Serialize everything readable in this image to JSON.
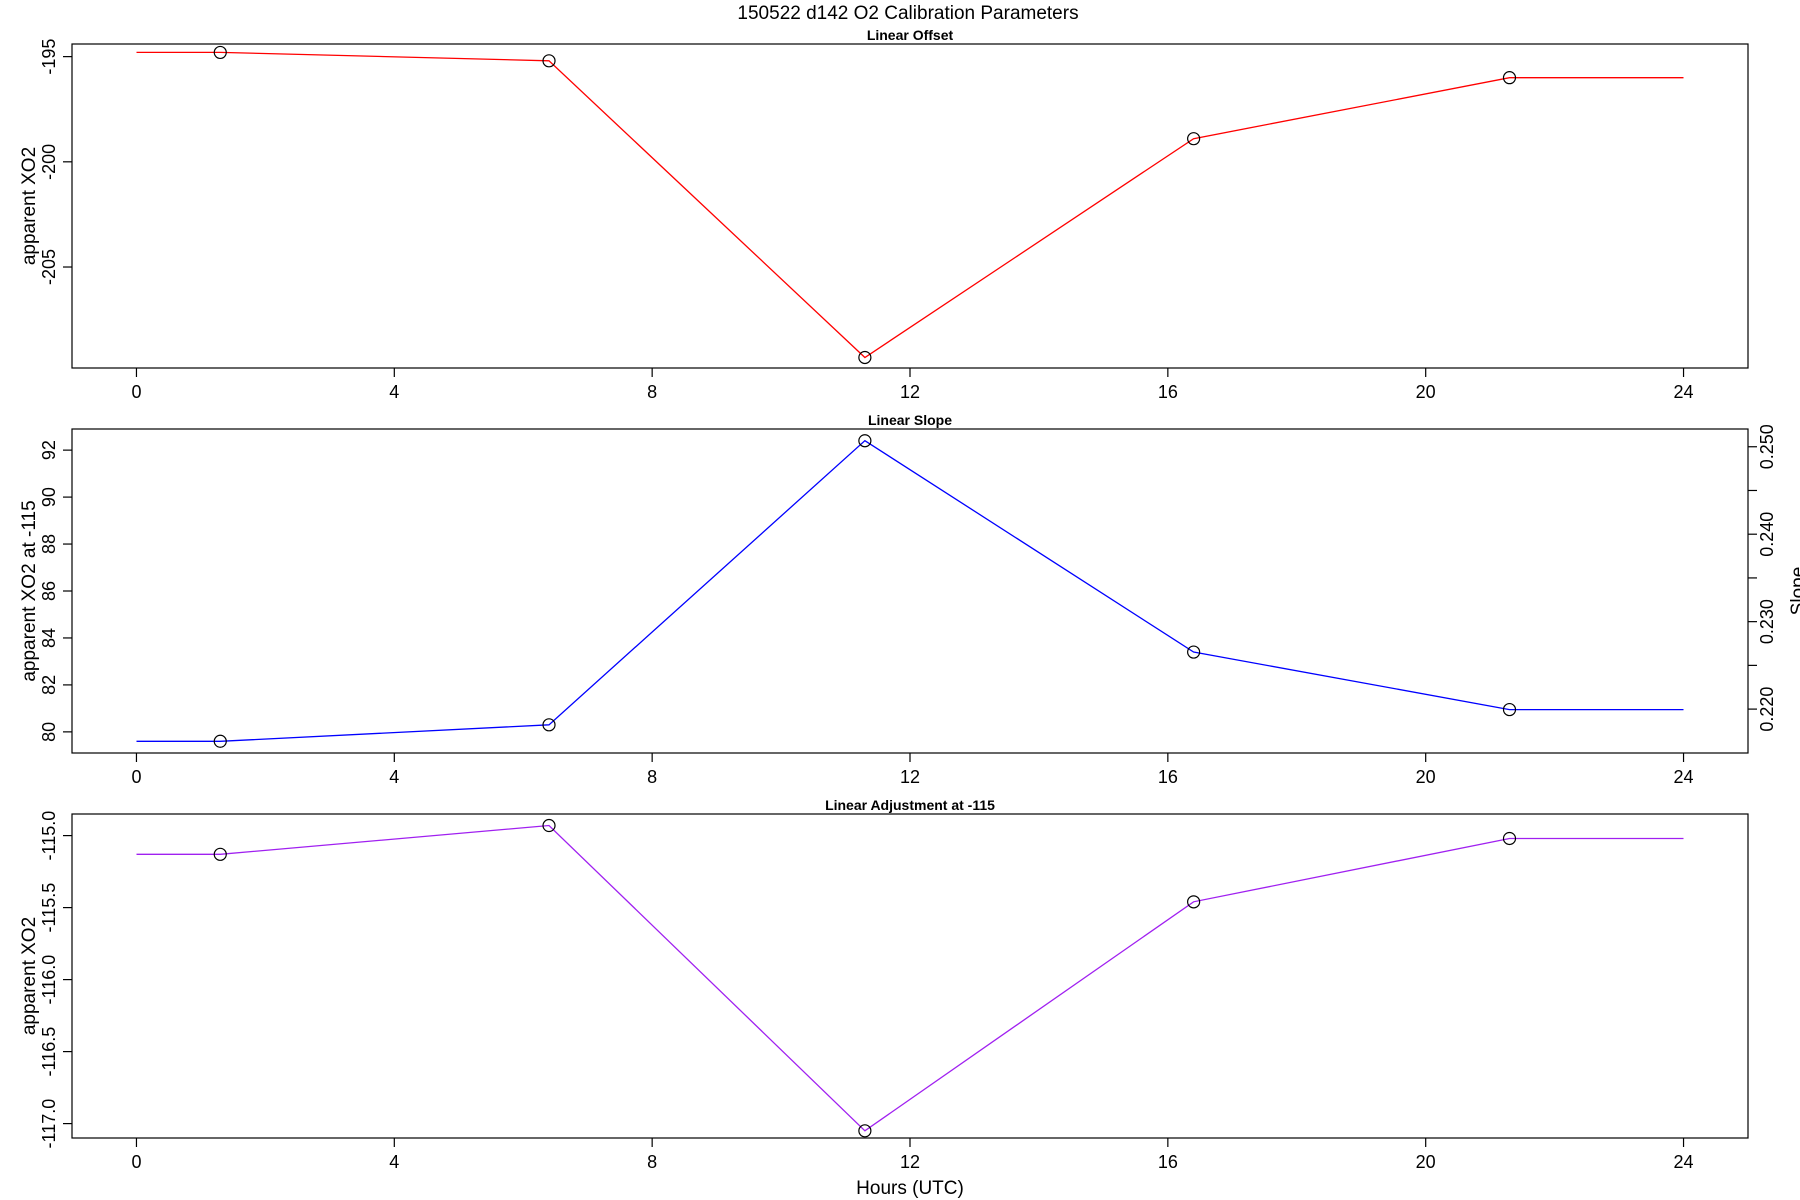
{
  "figure": {
    "title": "150522   d142   O2 Calibration Parameters",
    "xlabel": "Hours (UTC)"
  },
  "chart_data": [
    {
      "type": "line",
      "title": "Linear Offset",
      "xlabel": "",
      "ylabel": "apparent XO2",
      "xlim": [
        -1.0,
        25.0
      ],
      "ylim": [
        -209.8,
        -194.4
      ],
      "xticks": [
        0,
        4,
        8,
        12,
        16,
        20,
        24
      ],
      "yticks": [
        -195,
        -200,
        -205
      ],
      "grid": false,
      "color": "#ff0000",
      "series": [
        {
          "x": [
            0,
            1.3,
            6.4,
            11.3,
            16.4,
            21.3,
            24
          ],
          "y": [
            -194.8,
            -194.8,
            -195.2,
            -209.3,
            -198.9,
            -196.0,
            -196.0
          ]
        }
      ],
      "points": {
        "x": [
          1.3,
          6.4,
          11.3,
          16.4,
          21.3
        ],
        "y": [
          -194.8,
          -195.2,
          -209.3,
          -198.9,
          -196.0
        ]
      }
    },
    {
      "type": "line",
      "title": "Linear Slope",
      "xlabel": "",
      "ylabel": "apparent XO2 at -115",
      "y2label": "Slope",
      "xlim": [
        -1.0,
        25.0
      ],
      "ylim": [
        79.1,
        92.9
      ],
      "xticks": [
        0,
        4,
        8,
        12,
        16,
        20,
        24
      ],
      "yticks": [
        80,
        82,
        84,
        86,
        88,
        90,
        92
      ],
      "y2ticks": [
        0.22,
        0.23,
        0.24,
        0.25
      ],
      "y2ticks_labels": [
        "0.220",
        "0.230",
        "0.240",
        "0.250"
      ],
      "y2_minor_ticks": [
        0.225,
        0.235,
        0.245
      ],
      "y2lim": [
        0.21498,
        0.25203
      ],
      "grid": false,
      "color": "#0000ff",
      "series": [
        {
          "x": [
            0,
            1.3,
            6.4,
            11.3,
            16.4,
            21.3,
            24
          ],
          "y": [
            79.6,
            79.6,
            80.3,
            92.4,
            83.4,
            80.95,
            80.95
          ]
        }
      ],
      "points": {
        "x": [
          1.3,
          6.4,
          11.3,
          16.4,
          21.3
        ],
        "y": [
          79.6,
          80.3,
          92.4,
          83.4,
          80.95
        ]
      }
    },
    {
      "type": "line",
      "title": "Linear Adjustment at -115",
      "xlabel": "Hours (UTC)",
      "ylabel": "apparent XO2",
      "xlim": [
        -1.0,
        25.0
      ],
      "ylim": [
        -117.1,
        -114.85
      ],
      "xticks": [
        0,
        4,
        8,
        12,
        16,
        20,
        24
      ],
      "yticks": [
        -115.0,
        -115.5,
        -116.0,
        -116.5,
        -117.0
      ],
      "yticks_labels": [
        "-115.0",
        "-115.5",
        "-116.0",
        "-116.5",
        "-117.0"
      ],
      "grid": false,
      "color": "#a020f0",
      "series": [
        {
          "x": [
            0,
            1.3,
            6.4,
            11.3,
            16.4,
            21.3,
            24
          ],
          "y": [
            -115.13,
            -115.13,
            -114.93,
            -117.05,
            -115.46,
            -115.02,
            -115.02
          ]
        }
      ],
      "points": {
        "x": [
          1.3,
          6.4,
          11.3,
          16.4,
          21.3
        ],
        "y": [
          -115.13,
          -114.93,
          -117.05,
          -115.46,
          -115.02
        ]
      }
    }
  ]
}
